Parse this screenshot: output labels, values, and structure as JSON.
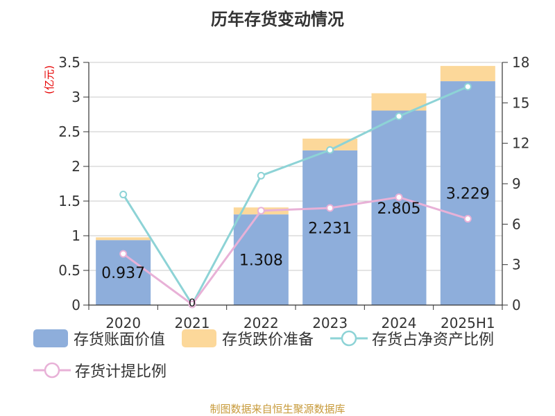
{
  "chart_data": {
    "type": "bar",
    "title": "历年存货变动情况",
    "categories": [
      "2020",
      "2021",
      "2022",
      "2023",
      "2024",
      "2025H1"
    ],
    "y_left": {
      "unit": "(亿元)",
      "ylim": [
        0,
        3.5
      ],
      "ticks": [
        "0",
        "0.5",
        "1",
        "1.5",
        "2",
        "2.5",
        "3",
        "3.5"
      ]
    },
    "y_right": {
      "ylim": [
        0,
        18
      ],
      "ticks": [
        "0",
        "3",
        "6",
        "9",
        "12",
        "15",
        "18"
      ]
    },
    "grid": true,
    "legend_position": "bottom",
    "series": [
      {
        "name": "存货账面价值",
        "kind": "bar",
        "stack": "inventory",
        "axis": "left",
        "color": "#8eaedb",
        "values": [
          0.937,
          0,
          1.308,
          2.231,
          2.805,
          3.229
        ],
        "labels": [
          "0.937",
          "0",
          "1.308",
          "2.231",
          "2.805",
          "3.229"
        ]
      },
      {
        "name": "存货跌价准备",
        "kind": "bar",
        "stack": "inventory",
        "axis": "left",
        "color": "#fcd89a",
        "values": [
          0.04,
          0,
          0.1,
          0.17,
          0.25,
          0.22
        ]
      },
      {
        "name": "存货占净资产比例",
        "kind": "line",
        "axis": "right",
        "color": "#8dd3d6",
        "values": [
          8.2,
          0.05,
          9.6,
          11.5,
          14.0,
          16.2
        ]
      },
      {
        "name": "存货计提比例",
        "kind": "line",
        "axis": "right",
        "color": "#e8b1d7",
        "values": [
          3.8,
          0.05,
          7.0,
          7.2,
          8.0,
          6.4
        ]
      }
    ]
  },
  "source_text": "制图数据来自恒生聚源数据库"
}
